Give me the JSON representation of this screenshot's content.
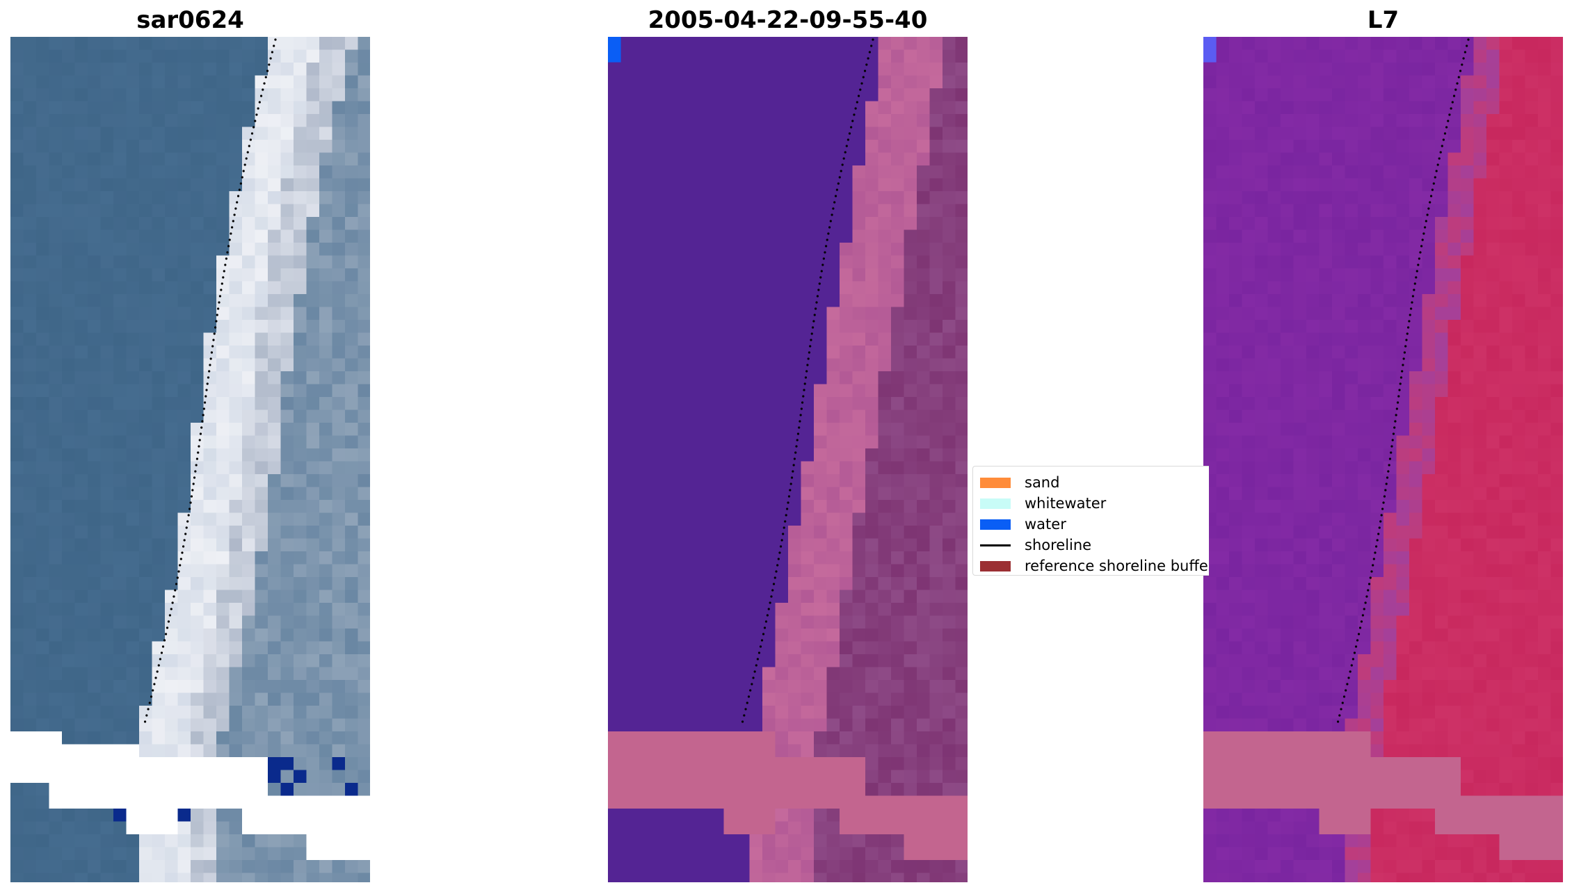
{
  "panels": [
    {
      "title": "sar0624",
      "variant": "rgb"
    },
    {
      "title": "2005-04-22-09-55-40",
      "variant": "classified"
    },
    {
      "title": "L7",
      "variant": "index"
    }
  ],
  "legend": {
    "items": [
      {
        "label": "sand",
        "type": "patch",
        "color": "#ff8c3a"
      },
      {
        "label": "whitewater",
        "type": "patch",
        "color": "#c8fcf7"
      },
      {
        "label": "water",
        "type": "patch",
        "color": "#0a5ef5"
      },
      {
        "label": "shoreline",
        "type": "line",
        "color": "#000000"
      },
      {
        "label": "reference shoreline buffer",
        "type": "patch",
        "color": "#9b2f33"
      }
    ]
  },
  "colors": {
    "sea_rgb": "#3f6688",
    "beach_rgb": "#d8dde6",
    "nodata": "#ffffff",
    "water_class": "#542494",
    "land_overlay": "#8e4b87",
    "nodata_overlay": "#c3658f",
    "index_water": "#7a25a0",
    "index_land": "#c8285e"
  }
}
